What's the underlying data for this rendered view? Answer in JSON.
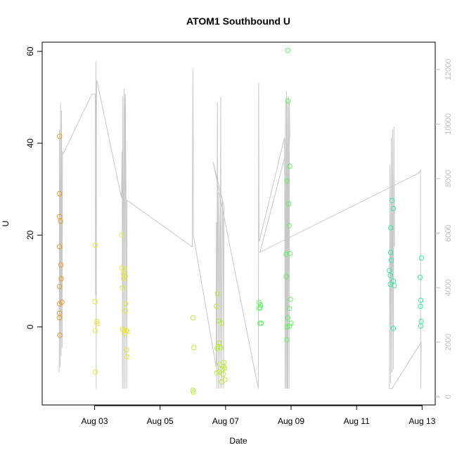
{
  "chart_data": {
    "type": "scatter",
    "title": "ATOM1 Southbound U",
    "xlabel": "Date",
    "ylabel": "U",
    "ylabel_right": "",
    "x_ticks": [
      "Aug 03",
      "Aug 05",
      "Aug 07",
      "Aug 09",
      "Aug 11",
      "Aug 13"
    ],
    "x_tick_values": [
      3,
      5,
      7,
      9,
      11,
      13
    ],
    "xlim": [
      1.4,
      13.4
    ],
    "y_ticks": [
      "0",
      "20",
      "40",
      "60"
    ],
    "y_tick_values": [
      0,
      20,
      40,
      60
    ],
    "ylim": [
      -17,
      62
    ],
    "y2_ticks": [
      "0",
      "2000",
      "4000",
      "6000",
      "8000",
      "10000",
      "12000"
    ],
    "y2_tick_values": [
      0,
      2000,
      4000,
      6000,
      8000,
      10000,
      12000
    ],
    "y2lim": [
      -300,
      13000
    ],
    "grid": false,
    "legend": "none",
    "line_color": "#c8c8c8",
    "series": [
      {
        "color": "#f0962a",
        "points": [
          [
            1.93,
            41.5
          ],
          [
            1.93,
            29.0
          ],
          [
            1.93,
            24.0
          ],
          [
            1.96,
            23.0
          ],
          [
            1.93,
            17.5
          ],
          [
            1.97,
            13.5
          ],
          [
            1.98,
            10.5
          ],
          [
            1.93,
            8.8
          ],
          [
            2.0,
            5.4
          ],
          [
            1.93,
            5.0
          ],
          [
            1.93,
            3.0
          ],
          [
            1.93,
            2.0
          ],
          [
            1.94,
            -1.8
          ]
        ]
      },
      {
        "color": "#e8e43a",
        "points": [
          [
            3.02,
            17.8
          ],
          [
            3.01,
            5.5
          ],
          [
            3.07,
            1.2
          ],
          [
            3.08,
            0.7
          ],
          [
            3.02,
            -0.8
          ],
          [
            3.02,
            -9.8
          ],
          [
            3.83,
            20.0
          ],
          [
            3.84,
            12.8
          ],
          [
            3.92,
            12.5
          ],
          [
            3.88,
            11.5
          ],
          [
            3.94,
            11.0
          ],
          [
            3.88,
            10.5
          ],
          [
            3.85,
            8.5
          ],
          [
            3.95,
            5.0
          ],
          [
            3.94,
            3.5
          ],
          [
            3.86,
            -0.5
          ],
          [
            3.9,
            -0.7
          ],
          [
            3.96,
            -0.8
          ],
          [
            4.0,
            -1.0
          ],
          [
            3.93,
            -1.5
          ],
          [
            3.98,
            -5.0
          ],
          [
            3.99,
            -6.5
          ]
        ]
      },
      {
        "color": "#b7ec3a",
        "points": [
          [
            6.0,
            2.0
          ],
          [
            6.03,
            -4.5
          ],
          [
            6.0,
            -13.8
          ],
          [
            6.02,
            -14.2
          ],
          [
            6.75,
            7.2
          ],
          [
            6.72,
            4.5
          ],
          [
            6.8,
            1.3
          ],
          [
            6.88,
            0.8
          ],
          [
            6.8,
            -3.5
          ],
          [
            6.77,
            -4.3
          ],
          [
            6.85,
            -4.5
          ],
          [
            6.74,
            -4.7
          ],
          [
            6.95,
            -7.7
          ],
          [
            6.82,
            -8.2
          ],
          [
            6.94,
            -8.5
          ],
          [
            6.9,
            -9.2
          ],
          [
            6.97,
            -9.0
          ],
          [
            6.73,
            -10.0
          ],
          [
            6.8,
            -9.8
          ],
          [
            6.93,
            -10.3
          ],
          [
            6.98,
            -11.5
          ],
          [
            6.88,
            -12.0
          ]
        ]
      },
      {
        "color": "#5ef05e",
        "points": [
          [
            8.9,
            60.2
          ],
          [
            8.9,
            49.2
          ],
          [
            8.96,
            35.0
          ],
          [
            8.88,
            31.8
          ],
          [
            8.93,
            26.8
          ],
          [
            8.94,
            22.0
          ],
          [
            8.85,
            15.8
          ],
          [
            8.97,
            16.0
          ],
          [
            8.85,
            11.0
          ],
          [
            8.98,
            6.0
          ],
          [
            8.95,
            4.0
          ],
          [
            8.9,
            2.0
          ],
          [
            8.95,
            0.2
          ],
          [
            9.0,
            0.8
          ],
          [
            8.88,
            0.0
          ],
          [
            8.87,
            -2.8
          ],
          [
            8.03,
            5.3
          ],
          [
            8.07,
            4.8
          ],
          [
            8.02,
            4.0
          ],
          [
            8.06,
            4.2
          ],
          [
            8.05,
            0.8
          ],
          [
            8.09,
            0.8
          ]
        ]
      },
      {
        "color": "#36e8a0",
        "points": [
          [
            12.08,
            27.5
          ],
          [
            12.12,
            25.8
          ],
          [
            12.04,
            21.6
          ],
          [
            12.04,
            16.2
          ],
          [
            12.06,
            14.5
          ],
          [
            12.0,
            12.3
          ],
          [
            12.03,
            11.2
          ],
          [
            12.12,
            10.0
          ],
          [
            12.03,
            9.3
          ],
          [
            12.15,
            9.0
          ],
          [
            12.12,
            -0.3
          ],
          [
            12.98,
            15.0
          ],
          [
            12.94,
            10.8
          ],
          [
            12.96,
            5.8
          ],
          [
            12.95,
            4.5
          ],
          [
            12.97,
            1.2
          ],
          [
            12.96,
            0.2
          ]
        ]
      }
    ],
    "line_y2": [
      [
        1.92,
        900
      ],
      [
        1.93,
        9800
      ],
      [
        1.95,
        1100
      ],
      [
        1.96,
        10800
      ],
      [
        1.98,
        1500
      ],
      [
        1.99,
        10500
      ],
      [
        2.01,
        1800
      ],
      [
        2.02,
        9000
      ],
      [
        2.04,
        8900
      ],
      [
        2.92,
        11100
      ],
      [
        3.02,
        11100
      ],
      [
        3.03,
        3700
      ],
      [
        3.04,
        12300
      ],
      [
        3.05,
        300
      ],
      [
        3.06,
        11500
      ],
      [
        3.07,
        11600
      ],
      [
        3.82,
        7300
      ],
      [
        3.84,
        9000
      ],
      [
        3.85,
        300
      ],
      [
        3.86,
        11000
      ],
      [
        3.88,
        6500
      ],
      [
        3.89,
        300
      ],
      [
        3.9,
        11300
      ],
      [
        3.92,
        10500
      ],
      [
        3.93,
        300
      ],
      [
        3.94,
        11100
      ],
      [
        3.96,
        7000
      ],
      [
        3.98,
        300
      ],
      [
        3.99,
        7200
      ],
      [
        5.98,
        5500
      ],
      [
        6.0,
        12000
      ],
      [
        6.01,
        10000
      ],
      [
        6.02,
        5900
      ],
      [
        6.71,
        1100
      ],
      [
        6.72,
        6400
      ],
      [
        6.73,
        300
      ],
      [
        6.75,
        10800
      ],
      [
        6.76,
        5800
      ],
      [
        6.78,
        300
      ],
      [
        6.79,
        7500
      ],
      [
        6.81,
        6000
      ],
      [
        6.83,
        300
      ],
      [
        6.85,
        11000
      ],
      [
        6.86,
        6200
      ],
      [
        6.88,
        300
      ],
      [
        6.9,
        7200
      ],
      [
        6.92,
        6500
      ],
      [
        6.94,
        300
      ],
      [
        6.95,
        7000
      ],
      [
        6.62,
        8600
      ],
      [
        8.0,
        300
      ],
      [
        8.01,
        11500
      ],
      [
        8.02,
        5800
      ],
      [
        8.03,
        5700
      ],
      [
        8.8,
        9500
      ],
      [
        8.82,
        300
      ],
      [
        8.83,
        10800
      ],
      [
        8.85,
        300
      ],
      [
        8.86,
        11200
      ],
      [
        8.88,
        300
      ],
      [
        8.89,
        10900
      ],
      [
        8.9,
        300
      ],
      [
        8.92,
        11000
      ],
      [
        8.94,
        300
      ],
      [
        8.95,
        10800
      ],
      [
        8.96,
        9500
      ],
      [
        8.05,
        5300
      ],
      [
        12.9,
        8200
      ],
      [
        12.95,
        8300
      ],
      [
        12.96,
        300
      ],
      [
        12.97,
        2000
      ],
      [
        12.08,
        300
      ],
      [
        12.0,
        300
      ],
      [
        12.02,
        8500
      ],
      [
        12.04,
        500
      ],
      [
        12.06,
        9500
      ],
      [
        12.08,
        900
      ],
      [
        12.1,
        9800
      ],
      [
        12.12,
        1000
      ],
      [
        12.14,
        9900
      ],
      [
        12.16,
        5500
      ]
    ]
  }
}
